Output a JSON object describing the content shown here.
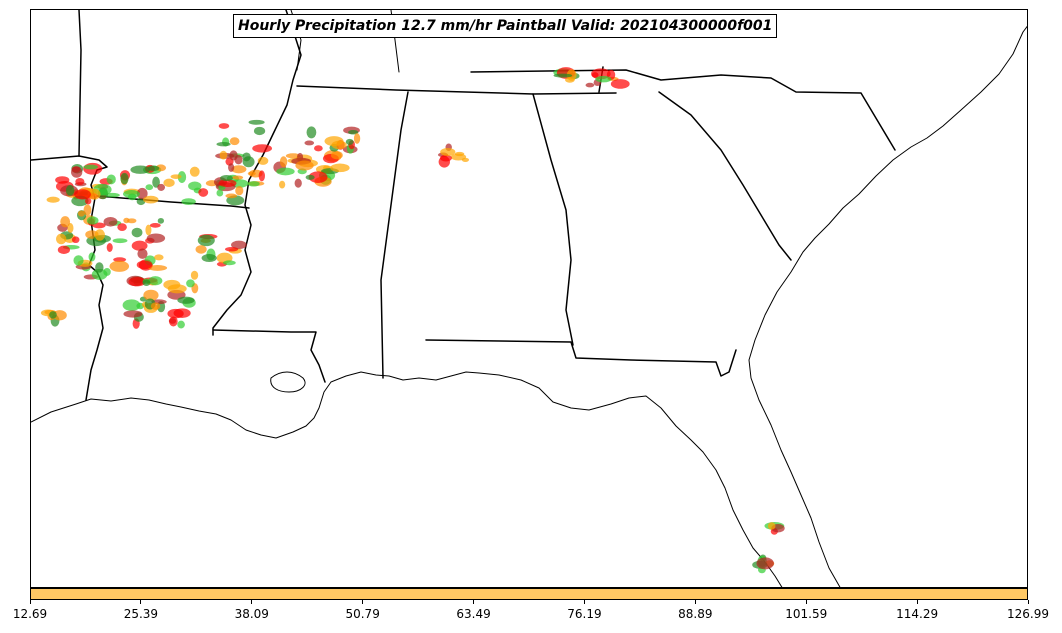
{
  "title": "Hourly Precipitation 12.7 mm/hr Paintball Valid: 202104300000f001",
  "colorbar": {
    "color": "#ffc864",
    "ticks": [
      "12.69",
      "25.39",
      "38.09",
      "50.79",
      "63.49",
      "76.19",
      "88.89",
      "101.59",
      "114.29",
      "126.99"
    ]
  },
  "map": {
    "region": "Southeastern United States",
    "states": [
      "Arkansas",
      "Louisiana",
      "Mississippi",
      "Alabama",
      "Georgia",
      "Tennessee",
      "South Carolina",
      "Florida"
    ],
    "precip_colors": [
      "#ff0000",
      "#ff8c00",
      "#32cd32",
      "#228b22",
      "#b22222",
      "#ffa500"
    ]
  }
}
